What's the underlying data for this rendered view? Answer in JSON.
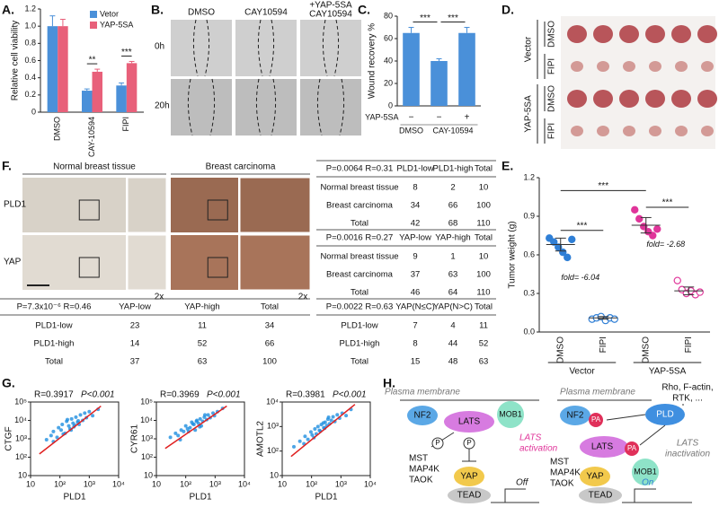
{
  "panel_labels": [
    "A.",
    "B.",
    "C.",
    "D.",
    "E.",
    "F.",
    "G.",
    "H."
  ],
  "chart_data": [
    {
      "type": "bar",
      "ylabel": "Relative cell viability",
      "categories": [
        "DMSO",
        "CAY-10594",
        "FIPI"
      ],
      "series": [
        {
          "name": "Vetor",
          "color": "#4a90d9",
          "values": [
            1.0,
            0.25,
            0.31
          ],
          "errors": [
            0.12,
            0.02,
            0.03
          ]
        },
        {
          "name": "YAP-5SA",
          "color": "#e8607a",
          "values": [
            1.0,
            0.47,
            0.57
          ],
          "errors": [
            0.08,
            0.03,
            0.02
          ]
        }
      ],
      "ylim": [
        0,
        1.2
      ],
      "yticks": [
        0,
        0.2,
        0.4,
        0.6,
        0.8,
        {
          "value": 1.0,
          "label": "1.0"
        },
        1.2
      ],
      "legend": "upper-right",
      "annotations": [
        "**",
        "***"
      ]
    },
    {
      "type": "bar",
      "ylabel": "Wound recovery %",
      "categories": [
        "DMSO",
        "CAY-10594",
        null
      ],
      "values": [
        65,
        40,
        65
      ],
      "errors": [
        5,
        2,
        5
      ],
      "color": "#4a90d9",
      "ylim": [
        0,
        80
      ],
      "yticks": [
        0,
        20,
        40,
        60,
        80
      ],
      "annotations": [
        "***",
        "***"
      ],
      "row_label": "YAP-5SA",
      "row_values": [
        "−",
        "−",
        "+"
      ]
    },
    {
      "type": "dot",
      "ylabel": "Tumor weight (g)",
      "categories": [
        "DMSO",
        "FIPI",
        "DMSO",
        "FIPI"
      ],
      "groups": [
        "Vector",
        "YAP-5SA"
      ],
      "colors": [
        "#2f7fd6",
        "#2f7fd6",
        "#e0359a",
        "#e0359a"
      ],
      "open": [
        false,
        true,
        false,
        true
      ],
      "points": [
        [
          0.73,
          0.7,
          0.66,
          0.62,
          0.58,
          0.72
        ],
        [
          0.1,
          0.11,
          0.12,
          0.09,
          0.11,
          0.1
        ],
        [
          0.95,
          0.88,
          0.82,
          0.78,
          0.75,
          0.8
        ],
        [
          0.4,
          0.33,
          0.3,
          0.32,
          0.29,
          0.31
        ]
      ],
      "values": [
        0.68,
        0.11,
        0.83,
        0.32
      ],
      "errors": [
        0.05,
        0.01,
        0.06,
        0.03
      ],
      "ylim": [
        0,
        1.2
      ],
      "yticks": [
        {
          "value": 0,
          "label": "0.0"
        },
        0.3,
        0.6,
        0.9,
        1.2
      ],
      "annotations": [
        "***",
        "***",
        "***"
      ],
      "fold_labels": [
        "fold= -6.04",
        "fold= -2.68"
      ]
    },
    {
      "type": "scatter",
      "log": true,
      "xlabel": "PLD1",
      "ylabel": "CTGF",
      "stat_r": "R=0.3917",
      "stat_p": "P<0.001",
      "color": "#1f8fe0",
      "fit_color": "#e02020",
      "x": [
        35,
        50,
        60,
        80,
        90,
        110,
        120,
        150,
        170,
        200,
        220,
        250,
        280,
        300,
        350,
        400,
        450,
        500,
        600,
        700,
        800,
        1000,
        1300,
        2000,
        60,
        130,
        180,
        240,
        320,
        420
      ],
      "y": [
        900,
        1500,
        2500,
        1200,
        4000,
        3000,
        6000,
        2000,
        9000,
        5000,
        3500,
        12000,
        7000,
        4500,
        15000,
        8000,
        6000,
        20000,
        10000,
        25000,
        14000,
        30000,
        18000,
        40000,
        700,
        1800,
        11000,
        3000,
        5500,
        9500
      ],
      "fit": {
        "x": [
          20,
          2500
        ],
        "y": [
          150,
          60000
        ]
      },
      "xlim": [
        10,
        10000
      ],
      "ylim": [
        10,
        100000
      ],
      "xticks": [
        10,
        {
          "value": 100,
          "label": "10²"
        },
        {
          "value": 1000,
          "label": "10³"
        },
        {
          "value": 10000,
          "label": "10⁴"
        }
      ],
      "yticks": [
        10,
        {
          "value": 100,
          "label": "10²"
        },
        {
          "value": 1000,
          "label": "10³"
        },
        {
          "value": 10000,
          "label": "10⁴"
        },
        {
          "value": 100000,
          "label": "10⁵"
        }
      ]
    },
    {
      "type": "scatter",
      "log": true,
      "xlabel": "PLD1",
      "ylabel": "CYR61",
      "stat_r": "R=0.3969",
      "stat_p": "P<0.001",
      "color": "#1f8fe0",
      "fit_color": "#e02020",
      "x": [
        30,
        45,
        55,
        70,
        85,
        100,
        115,
        140,
        160,
        190,
        210,
        240,
        270,
        310,
        340,
        380,
        430,
        520,
        580,
        680,
        850,
        950,
        1200,
        1800,
        65,
        125,
        175,
        230,
        300,
        450
      ],
      "y": [
        1200,
        2000,
        1500,
        3000,
        2500,
        5000,
        3500,
        4000,
        8000,
        6000,
        3000,
        10000,
        7000,
        12000,
        5000,
        9000,
        15000,
        11000,
        20000,
        14000,
        25000,
        18000,
        30000,
        45000,
        900,
        2500,
        6500,
        9000,
        4500,
        20000
      ],
      "fit": {
        "x": [
          20,
          2500
        ],
        "y": [
          300,
          60000
        ]
      },
      "xlim": [
        10,
        10000
      ],
      "ylim": [
        10,
        100000
      ],
      "xticks": [
        10,
        {
          "value": 100,
          "label": "10²"
        },
        {
          "value": 1000,
          "label": "10³"
        },
        {
          "value": 10000,
          "label": "10⁴"
        }
      ],
      "yticks": [
        10,
        {
          "value": 100,
          "label": "10²"
        },
        {
          "value": 1000,
          "label": "10³"
        },
        {
          "value": 10000,
          "label": "10⁴"
        },
        {
          "value": 100000,
          "label": "10⁵"
        }
      ]
    },
    {
      "type": "scatter",
      "log": true,
      "xlabel": "PLD1",
      "ylabel": "AMOTL2",
      "stat_r": "R=0.3981",
      "stat_p": "P<0.001",
      "color": "#1f8fe0",
      "fit_color": "#e02020",
      "x": [
        25,
        40,
        60,
        75,
        95,
        105,
        130,
        145,
        165,
        185,
        215,
        260,
        290,
        330,
        360,
        410,
        470,
        540,
        620,
        750,
        900,
        1100,
        1500,
        2200,
        55,
        120,
        200,
        250,
        280,
        380
      ],
      "y": [
        150,
        250,
        400,
        300,
        600,
        450,
        800,
        500,
        1000,
        700,
        1200,
        900,
        1500,
        1100,
        2000,
        1300,
        1800,
        2500,
        1600,
        3000,
        2200,
        3500,
        2800,
        5000,
        200,
        350,
        650,
        1400,
        850,
        2400
      ],
      "fit": {
        "x": [
          20,
          3000
        ],
        "y": [
          60,
          8000
        ]
      },
      "xlim": [
        10,
        10000
      ],
      "ylim": [
        10,
        10000
      ],
      "xticks": [
        10,
        {
          "value": 100,
          "label": "10²"
        },
        {
          "value": 1000,
          "label": "10³"
        },
        {
          "value": 10000,
          "label": "10⁴"
        }
      ],
      "yticks": [
        10,
        {
          "value": 100,
          "label": "10²"
        },
        {
          "value": 1000,
          "label": "10³"
        },
        {
          "value": 10000,
          "label": "10⁴"
        }
      ]
    }
  ],
  "images": {
    "B": {
      "columns": [
        [
          "DMSO"
        ],
        [
          "CAY10594"
        ],
        [
          "+YAP-5SA",
          "CAY10594"
        ]
      ],
      "rows": [
        "0h",
        "20h"
      ]
    },
    "D": {
      "groups": [
        "Vector",
        "YAP-5SA"
      ],
      "rows": [
        "DMSO",
        "FIPI",
        "DMSO",
        "FIPI"
      ]
    },
    "F": {
      "columns": [
        "Normal breast tissue",
        "Breast carcinoma"
      ],
      "rows": [
        "PLD1",
        "YAP"
      ],
      "zoom": [
        "2x",
        "2x"
      ]
    }
  },
  "tables": [
    {
      "stat": "P=7.3x10⁻⁶  R=0.46",
      "columns": [
        "YAP-low",
        "YAP-high",
        "Total"
      ],
      "rows": [
        {
          "label": "PLD1-low",
          "cells": [
            23,
            11,
            34
          ]
        },
        {
          "label": "PLD1-high",
          "cells": [
            14,
            52,
            66
          ]
        },
        {
          "label": "Total",
          "cells": [
            37,
            63,
            100
          ]
        }
      ]
    },
    {
      "stat": "P=0.0064  R=0.31",
      "columns": [
        "PLD1-low",
        "PLD1-high",
        "Total"
      ],
      "rows": [
        {
          "label": "Normal breast tissue",
          "cells": [
            8,
            2,
            10
          ]
        },
        {
          "label": "Breast carcinoma",
          "cells": [
            34,
            66,
            100
          ]
        },
        {
          "label": "Total",
          "cells": [
            42,
            68,
            110
          ]
        }
      ]
    },
    {
      "stat": "P=0.0016  R=0.27",
      "columns": [
        "YAP-low",
        "YAP-high",
        "Total"
      ],
      "rows": [
        {
          "label": "Normal breast tissue",
          "cells": [
            9,
            1,
            10
          ]
        },
        {
          "label": "Breast carcinoma",
          "cells": [
            37,
            63,
            100
          ]
        },
        {
          "label": "Total",
          "cells": [
            46,
            64,
            110
          ]
        }
      ]
    },
    {
      "stat": "P=0.0022  R=0.63",
      "columns": [
        "YAP(N≤C)",
        "YAP(N>C)",
        "Total"
      ],
      "rows": [
        {
          "label": "PLD1-low",
          "cells": [
            7,
            4,
            11
          ]
        },
        {
          "label": "PLD1-high",
          "cells": [
            8,
            44,
            52
          ]
        },
        {
          "label": "Total",
          "cells": [
            15,
            48,
            63
          ]
        }
      ]
    }
  ],
  "diagram": {
    "left": {
      "membrane": "Plasma membrane",
      "nf2": "NF2",
      "lats": "LATS",
      "mob1": "MOB1",
      "p1": "P",
      "p2": "P",
      "kinases": [
        "MST",
        "MAP4K",
        "TAOK"
      ],
      "state": [
        "LATS",
        "activation"
      ],
      "yap": "YAP",
      "tead": "TEAD",
      "output": "Off"
    },
    "right": {
      "signals": [
        "Rho, F-actin,",
        "RTK, ..."
      ],
      "membrane": "Plasma membrane",
      "nf2": "NF2",
      "pa1": "PA",
      "pld": "PLD",
      "lats": "LATS",
      "pa2": "PA",
      "kinases": [
        "MST",
        "MAP4K",
        "TAOK"
      ],
      "state": [
        "LATS",
        "inactivation"
      ],
      "yap": "YAP",
      "mob1": "MOB1",
      "tead": "TEAD",
      "output": "On"
    }
  }
}
